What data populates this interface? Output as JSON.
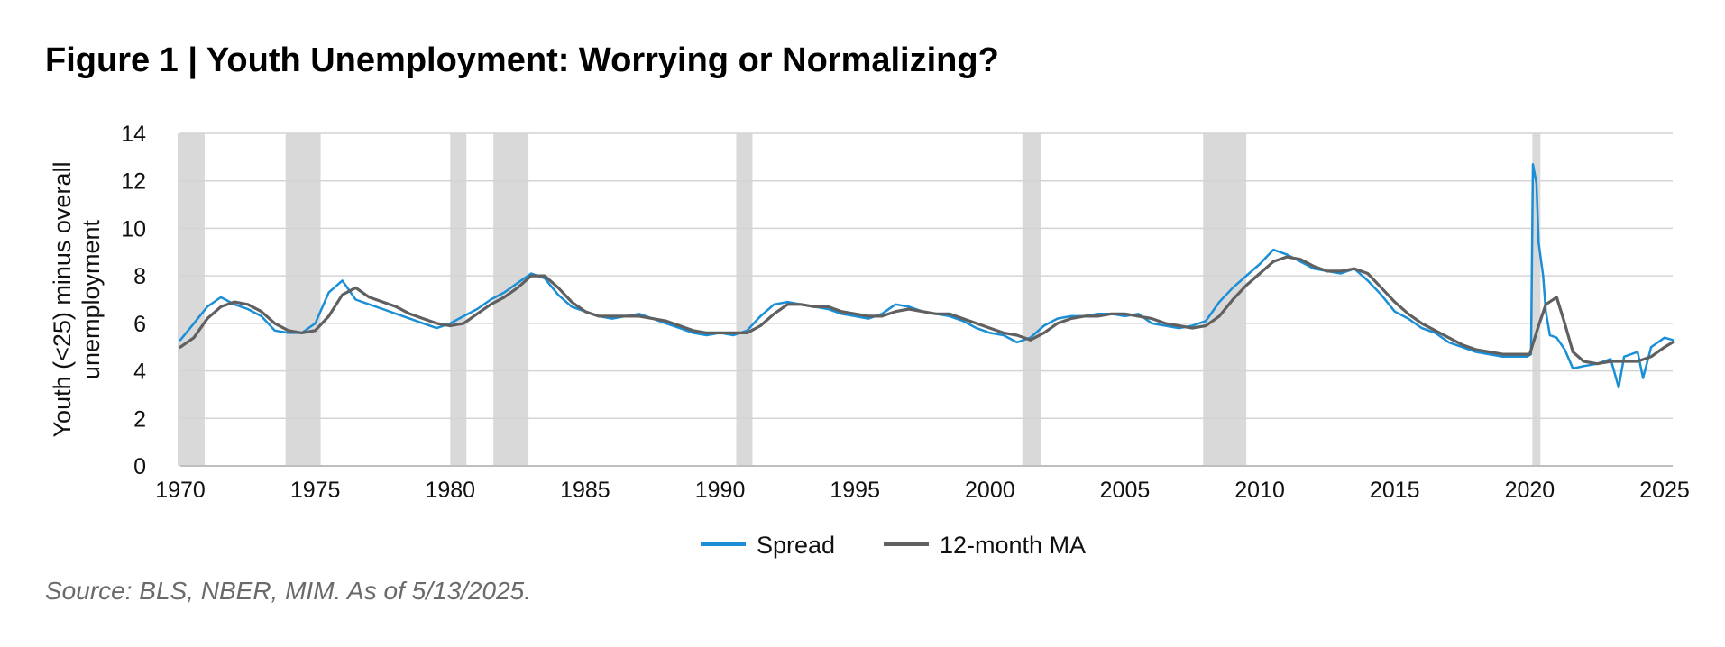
{
  "figure": {
    "title": "Figure 1 | Youth Unemployment: Worrying or Normalizing?",
    "source": "Source: BLS, NBER, MIM. As of 5/13/2025."
  },
  "chart_data": {
    "type": "line",
    "title": "Figure 1 | Youth Unemployment: Worrying or Normalizing?",
    "ylabel_lines": [
      "Youth (<25) minus overall",
      "unemployment"
    ],
    "xlabel": "",
    "xlim": [
      1970,
      2025.3
    ],
    "ylim": [
      0,
      14
    ],
    "x_ticks": [
      1970,
      1975,
      1980,
      1985,
      1990,
      1995,
      2000,
      2005,
      2010,
      2015,
      2020,
      2025
    ],
    "y_ticks": [
      0,
      2,
      4,
      6,
      8,
      10,
      12,
      14
    ],
    "grid": "horizontal",
    "legend_position": "bottom-center",
    "recessions": [
      {
        "start": 1969.9,
        "end": 1970.9
      },
      {
        "start": 1973.9,
        "end": 1975.2
      },
      {
        "start": 1980.0,
        "end": 1980.6
      },
      {
        "start": 1981.6,
        "end": 1982.9
      },
      {
        "start": 1990.6,
        "end": 1991.2
      },
      {
        "start": 2001.2,
        "end": 2001.9
      },
      {
        "start": 2007.9,
        "end": 2009.5
      },
      {
        "start": 2020.1,
        "end": 2020.4
      }
    ],
    "series": [
      {
        "name": "Spread",
        "color": "#1a8fd6",
        "points": [
          [
            1970.0,
            5.3
          ],
          [
            1970.5,
            6.0
          ],
          [
            1971.0,
            6.7
          ],
          [
            1971.5,
            7.1
          ],
          [
            1972.0,
            6.8
          ],
          [
            1972.5,
            6.6
          ],
          [
            1973.0,
            6.3
          ],
          [
            1973.5,
            5.7
          ],
          [
            1974.0,
            5.6
          ],
          [
            1974.5,
            5.6
          ],
          [
            1975.0,
            6.0
          ],
          [
            1975.5,
            7.3
          ],
          [
            1976.0,
            7.8
          ],
          [
            1976.5,
            7.0
          ],
          [
            1977.0,
            6.8
          ],
          [
            1977.5,
            6.6
          ],
          [
            1978.0,
            6.4
          ],
          [
            1978.5,
            6.2
          ],
          [
            1979.0,
            6.0
          ],
          [
            1979.5,
            5.8
          ],
          [
            1980.0,
            6.0
          ],
          [
            1980.5,
            6.3
          ],
          [
            1981.0,
            6.6
          ],
          [
            1981.5,
            7.0
          ],
          [
            1982.0,
            7.3
          ],
          [
            1982.5,
            7.7
          ],
          [
            1983.0,
            8.1
          ],
          [
            1983.5,
            7.9
          ],
          [
            1984.0,
            7.2
          ],
          [
            1984.5,
            6.7
          ],
          [
            1985.0,
            6.5
          ],
          [
            1985.5,
            6.3
          ],
          [
            1986.0,
            6.2
          ],
          [
            1986.5,
            6.3
          ],
          [
            1987.0,
            6.4
          ],
          [
            1987.5,
            6.2
          ],
          [
            1988.0,
            6.0
          ],
          [
            1988.5,
            5.8
          ],
          [
            1989.0,
            5.6
          ],
          [
            1989.5,
            5.5
          ],
          [
            1990.0,
            5.6
          ],
          [
            1990.5,
            5.5
          ],
          [
            1991.0,
            5.7
          ],
          [
            1991.5,
            6.3
          ],
          [
            1992.0,
            6.8
          ],
          [
            1992.5,
            6.9
          ],
          [
            1993.0,
            6.8
          ],
          [
            1993.5,
            6.7
          ],
          [
            1994.0,
            6.6
          ],
          [
            1994.5,
            6.4
          ],
          [
            1995.0,
            6.3
          ],
          [
            1995.5,
            6.2
          ],
          [
            1996.0,
            6.4
          ],
          [
            1996.5,
            6.8
          ],
          [
            1997.0,
            6.7
          ],
          [
            1997.5,
            6.5
          ],
          [
            1998.0,
            6.4
          ],
          [
            1998.5,
            6.3
          ],
          [
            1999.0,
            6.1
          ],
          [
            1999.5,
            5.8
          ],
          [
            2000.0,
            5.6
          ],
          [
            2000.5,
            5.5
          ],
          [
            2001.0,
            5.2
          ],
          [
            2001.5,
            5.4
          ],
          [
            2002.0,
            5.9
          ],
          [
            2002.5,
            6.2
          ],
          [
            2003.0,
            6.3
          ],
          [
            2003.5,
            6.3
          ],
          [
            2004.0,
            6.4
          ],
          [
            2004.5,
            6.4
          ],
          [
            2005.0,
            6.3
          ],
          [
            2005.5,
            6.4
          ],
          [
            2006.0,
            6.0
          ],
          [
            2006.5,
            5.9
          ],
          [
            2007.0,
            5.8
          ],
          [
            2007.5,
            5.9
          ],
          [
            2008.0,
            6.1
          ],
          [
            2008.5,
            6.9
          ],
          [
            2009.0,
            7.5
          ],
          [
            2009.5,
            8.0
          ],
          [
            2010.0,
            8.5
          ],
          [
            2010.5,
            9.1
          ],
          [
            2011.0,
            8.9
          ],
          [
            2011.5,
            8.6
          ],
          [
            2012.0,
            8.3
          ],
          [
            2012.5,
            8.2
          ],
          [
            2013.0,
            8.1
          ],
          [
            2013.5,
            8.3
          ],
          [
            2014.0,
            7.8
          ],
          [
            2014.5,
            7.2
          ],
          [
            2015.0,
            6.5
          ],
          [
            2015.5,
            6.2
          ],
          [
            2016.0,
            5.8
          ],
          [
            2016.5,
            5.6
          ],
          [
            2017.0,
            5.2
          ],
          [
            2017.5,
            5.0
          ],
          [
            2018.0,
            4.8
          ],
          [
            2018.5,
            4.7
          ],
          [
            2019.0,
            4.6
          ],
          [
            2019.5,
            4.6
          ],
          [
            2019.9,
            4.6
          ],
          [
            2020.05,
            4.7
          ],
          [
            2020.12,
            12.7
          ],
          [
            2020.25,
            11.9
          ],
          [
            2020.33,
            9.4
          ],
          [
            2020.5,
            8.0
          ],
          [
            2020.6,
            6.5
          ],
          [
            2020.75,
            5.5
          ],
          [
            2021.0,
            5.4
          ],
          [
            2021.3,
            4.9
          ],
          [
            2021.6,
            4.1
          ],
          [
            2022.0,
            4.2
          ],
          [
            2022.5,
            4.3
          ],
          [
            2023.0,
            4.5
          ],
          [
            2023.3,
            3.3
          ],
          [
            2023.5,
            4.6
          ],
          [
            2024.0,
            4.8
          ],
          [
            2024.2,
            3.7
          ],
          [
            2024.5,
            5.0
          ],
          [
            2025.0,
            5.4
          ],
          [
            2025.3,
            5.3
          ]
        ]
      },
      {
        "name": "12-month MA",
        "color": "#606060",
        "points": [
          [
            1970.0,
            5.0
          ],
          [
            1970.5,
            5.4
          ],
          [
            1971.0,
            6.2
          ],
          [
            1971.5,
            6.7
          ],
          [
            1972.0,
            6.9
          ],
          [
            1972.5,
            6.8
          ],
          [
            1973.0,
            6.5
          ],
          [
            1973.5,
            6.0
          ],
          [
            1974.0,
            5.7
          ],
          [
            1974.5,
            5.6
          ],
          [
            1975.0,
            5.7
          ],
          [
            1975.5,
            6.3
          ],
          [
            1976.0,
            7.2
          ],
          [
            1976.5,
            7.5
          ],
          [
            1977.0,
            7.1
          ],
          [
            1977.5,
            6.9
          ],
          [
            1978.0,
            6.7
          ],
          [
            1978.5,
            6.4
          ],
          [
            1979.0,
            6.2
          ],
          [
            1979.5,
            6.0
          ],
          [
            1980.0,
            5.9
          ],
          [
            1980.5,
            6.0
          ],
          [
            1981.0,
            6.4
          ],
          [
            1981.5,
            6.8
          ],
          [
            1982.0,
            7.1
          ],
          [
            1982.5,
            7.5
          ],
          [
            1983.0,
            8.0
          ],
          [
            1983.5,
            8.0
          ],
          [
            1984.0,
            7.5
          ],
          [
            1984.5,
            6.9
          ],
          [
            1985.0,
            6.5
          ],
          [
            1985.5,
            6.3
          ],
          [
            1986.0,
            6.3
          ],
          [
            1986.5,
            6.3
          ],
          [
            1987.0,
            6.3
          ],
          [
            1987.5,
            6.2
          ],
          [
            1988.0,
            6.1
          ],
          [
            1988.5,
            5.9
          ],
          [
            1989.0,
            5.7
          ],
          [
            1989.5,
            5.6
          ],
          [
            1990.0,
            5.6
          ],
          [
            1990.5,
            5.6
          ],
          [
            1991.0,
            5.6
          ],
          [
            1991.5,
            5.9
          ],
          [
            1992.0,
            6.4
          ],
          [
            1992.5,
            6.8
          ],
          [
            1993.0,
            6.8
          ],
          [
            1993.5,
            6.7
          ],
          [
            1994.0,
            6.7
          ],
          [
            1994.5,
            6.5
          ],
          [
            1995.0,
            6.4
          ],
          [
            1995.5,
            6.3
          ],
          [
            1996.0,
            6.3
          ],
          [
            1996.5,
            6.5
          ],
          [
            1997.0,
            6.6
          ],
          [
            1997.5,
            6.5
          ],
          [
            1998.0,
            6.4
          ],
          [
            1998.5,
            6.4
          ],
          [
            1999.0,
            6.2
          ],
          [
            1999.5,
            6.0
          ],
          [
            2000.0,
            5.8
          ],
          [
            2000.5,
            5.6
          ],
          [
            2001.0,
            5.5
          ],
          [
            2001.5,
            5.3
          ],
          [
            2002.0,
            5.6
          ],
          [
            2002.5,
            6.0
          ],
          [
            2003.0,
            6.2
          ],
          [
            2003.5,
            6.3
          ],
          [
            2004.0,
            6.3
          ],
          [
            2004.5,
            6.4
          ],
          [
            2005.0,
            6.4
          ],
          [
            2005.5,
            6.3
          ],
          [
            2006.0,
            6.2
          ],
          [
            2006.5,
            6.0
          ],
          [
            2007.0,
            5.9
          ],
          [
            2007.5,
            5.8
          ],
          [
            2008.0,
            5.9
          ],
          [
            2008.5,
            6.3
          ],
          [
            2009.0,
            7.0
          ],
          [
            2009.5,
            7.6
          ],
          [
            2010.0,
            8.1
          ],
          [
            2010.5,
            8.6
          ],
          [
            2011.0,
            8.8
          ],
          [
            2011.5,
            8.7
          ],
          [
            2012.0,
            8.4
          ],
          [
            2012.5,
            8.2
          ],
          [
            2013.0,
            8.2
          ],
          [
            2013.5,
            8.3
          ],
          [
            2014.0,
            8.1
          ],
          [
            2014.5,
            7.5
          ],
          [
            2015.0,
            6.9
          ],
          [
            2015.5,
            6.4
          ],
          [
            2016.0,
            6.0
          ],
          [
            2016.5,
            5.7
          ],
          [
            2017.0,
            5.4
          ],
          [
            2017.5,
            5.1
          ],
          [
            2018.0,
            4.9
          ],
          [
            2018.5,
            4.8
          ],
          [
            2019.0,
            4.7
          ],
          [
            2019.5,
            4.7
          ],
          [
            2020.0,
            4.7
          ],
          [
            2020.3,
            5.8
          ],
          [
            2020.6,
            6.8
          ],
          [
            2021.0,
            7.1
          ],
          [
            2021.3,
            6.0
          ],
          [
            2021.6,
            4.8
          ],
          [
            2022.0,
            4.4
          ],
          [
            2022.5,
            4.3
          ],
          [
            2023.0,
            4.4
          ],
          [
            2023.5,
            4.4
          ],
          [
            2024.0,
            4.4
          ],
          [
            2024.5,
            4.6
          ],
          [
            2025.0,
            5.0
          ],
          [
            2025.3,
            5.2
          ]
        ]
      }
    ]
  }
}
